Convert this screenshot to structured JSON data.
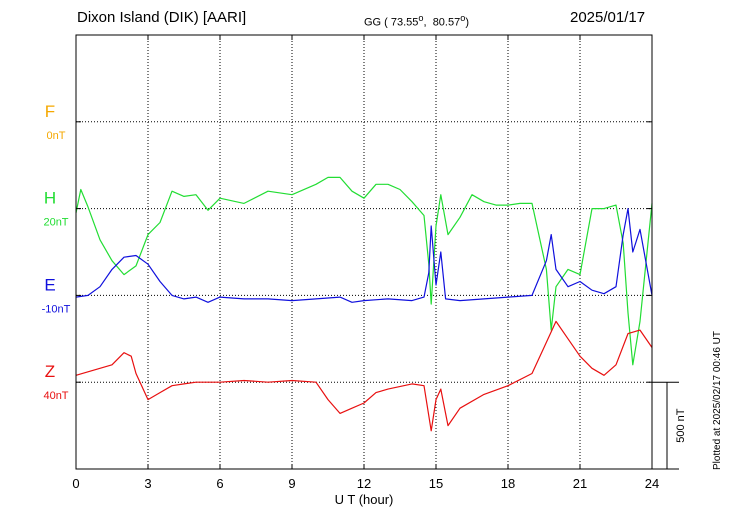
{
  "header": {
    "station": "Dixon Island (DIK)  [AARI]",
    "coords_prefix": "GG ( ",
    "lat": "73.55",
    "lon": "80.57",
    "date": "2025/01/17"
  },
  "chart_data": {
    "type": "line",
    "x_label": "U T (hour)",
    "x_range": [
      0,
      24
    ],
    "x_ticks": [
      "0",
      "3",
      "6",
      "9",
      "12",
      "15",
      "18",
      "21",
      "24"
    ],
    "grid": true,
    "scale_label": "500 nT",
    "plotted_note": "Plotted at 2025/02/17 00:46 UT",
    "units_per_division": 500,
    "series": [
      {
        "name": "F",
        "baseline_label": "0nT",
        "color": "#f5a800",
        "points": []
      },
      {
        "name": "H",
        "baseline_label": "20nT",
        "color": "#22dd33",
        "points": [
          [
            0,
            -25
          ],
          [
            0.2,
            110
          ],
          [
            0.5,
            10
          ],
          [
            1.0,
            -180
          ],
          [
            1.5,
            -300
          ],
          [
            2.0,
            -380
          ],
          [
            2.5,
            -330
          ],
          [
            3.0,
            -150
          ],
          [
            3.5,
            -80
          ],
          [
            4.0,
            100
          ],
          [
            4.5,
            70
          ],
          [
            5.0,
            80
          ],
          [
            5.5,
            -10
          ],
          [
            6.0,
            60
          ],
          [
            7.0,
            30
          ],
          [
            8.0,
            100
          ],
          [
            9.0,
            80
          ],
          [
            10.0,
            140
          ],
          [
            10.5,
            180
          ],
          [
            11.0,
            180
          ],
          [
            11.5,
            100
          ],
          [
            12.0,
            60
          ],
          [
            12.5,
            140
          ],
          [
            13.0,
            140
          ],
          [
            13.5,
            110
          ],
          [
            14.0,
            40
          ],
          [
            14.5,
            -40
          ],
          [
            14.7,
            -320
          ],
          [
            14.8,
            -550
          ],
          [
            15.0,
            -100
          ],
          [
            15.2,
            80
          ],
          [
            15.5,
            -150
          ],
          [
            16.0,
            -50
          ],
          [
            16.5,
            80
          ],
          [
            17.0,
            40
          ],
          [
            17.5,
            20
          ],
          [
            18.0,
            20
          ],
          [
            18.5,
            30
          ],
          [
            19.0,
            30
          ],
          [
            19.6,
            -350
          ],
          [
            19.8,
            -700
          ],
          [
            20.0,
            -450
          ],
          [
            20.5,
            -350
          ],
          [
            21.0,
            -380
          ],
          [
            21.5,
            0
          ],
          [
            22.0,
            0
          ],
          [
            22.5,
            20
          ],
          [
            22.8,
            -200
          ],
          [
            23.0,
            -600
          ],
          [
            23.2,
            -900
          ],
          [
            23.5,
            -650
          ],
          [
            24.0,
            30
          ]
        ]
      },
      {
        "name": "E",
        "baseline_label": "-10nT",
        "color": "#1010dd",
        "points": [
          [
            0,
            -10
          ],
          [
            0.5,
            0
          ],
          [
            1.0,
            50
          ],
          [
            1.5,
            150
          ],
          [
            2.0,
            220
          ],
          [
            2.5,
            230
          ],
          [
            3.0,
            180
          ],
          [
            3.5,
            80
          ],
          [
            4.0,
            0
          ],
          [
            4.5,
            -20
          ],
          [
            5.0,
            -10
          ],
          [
            5.5,
            -40
          ],
          [
            6.0,
            -10
          ],
          [
            7.0,
            -20
          ],
          [
            8.0,
            -20
          ],
          [
            9.0,
            -30
          ],
          [
            10.0,
            -20
          ],
          [
            11.0,
            -10
          ],
          [
            11.5,
            -40
          ],
          [
            12.0,
            -30
          ],
          [
            13.0,
            -20
          ],
          [
            14.0,
            -30
          ],
          [
            14.5,
            -10
          ],
          [
            14.7,
            130
          ],
          [
            14.8,
            400
          ],
          [
            15.0,
            60
          ],
          [
            15.2,
            250
          ],
          [
            15.4,
            -20
          ],
          [
            16.0,
            -30
          ],
          [
            17.0,
            -20
          ],
          [
            18.0,
            -10
          ],
          [
            19.0,
            0
          ],
          [
            19.6,
            200
          ],
          [
            19.8,
            350
          ],
          [
            20.0,
            150
          ],
          [
            20.5,
            50
          ],
          [
            21.0,
            80
          ],
          [
            21.5,
            30
          ],
          [
            22.0,
            10
          ],
          [
            22.5,
            50
          ],
          [
            22.8,
            350
          ],
          [
            23.0,
            500
          ],
          [
            23.2,
            250
          ],
          [
            23.5,
            380
          ],
          [
            24.0,
            0
          ]
        ]
      },
      {
        "name": "Z",
        "baseline_label": "40nT",
        "color": "#e81010",
        "points": [
          [
            0,
            40
          ],
          [
            0.5,
            60
          ],
          [
            1.0,
            80
          ],
          [
            1.5,
            100
          ],
          [
            2.0,
            170
          ],
          [
            2.3,
            150
          ],
          [
            2.5,
            50
          ],
          [
            3.0,
            -100
          ],
          [
            3.5,
            -60
          ],
          [
            4.0,
            -20
          ],
          [
            4.5,
            -10
          ],
          [
            5.0,
            0
          ],
          [
            6.0,
            0
          ],
          [
            7.0,
            10
          ],
          [
            8.0,
            0
          ],
          [
            9.0,
            10
          ],
          [
            10.0,
            0
          ],
          [
            10.5,
            -100
          ],
          [
            11.0,
            -180
          ],
          [
            11.5,
            -150
          ],
          [
            12.0,
            -120
          ],
          [
            12.5,
            -60
          ],
          [
            13.0,
            -40
          ],
          [
            14.0,
            -10
          ],
          [
            14.5,
            -20
          ],
          [
            14.8,
            -280
          ],
          [
            15.0,
            -100
          ],
          [
            15.2,
            -40
          ],
          [
            15.5,
            -250
          ],
          [
            16.0,
            -150
          ],
          [
            17.0,
            -70
          ],
          [
            18.0,
            -20
          ],
          [
            19.0,
            50
          ],
          [
            19.5,
            200
          ],
          [
            20.0,
            350
          ],
          [
            20.5,
            250
          ],
          [
            21.0,
            150
          ],
          [
            21.5,
            80
          ],
          [
            22.0,
            40
          ],
          [
            22.5,
            100
          ],
          [
            23.0,
            280
          ],
          [
            23.5,
            300
          ],
          [
            24.0,
            200
          ]
        ]
      }
    ]
  }
}
